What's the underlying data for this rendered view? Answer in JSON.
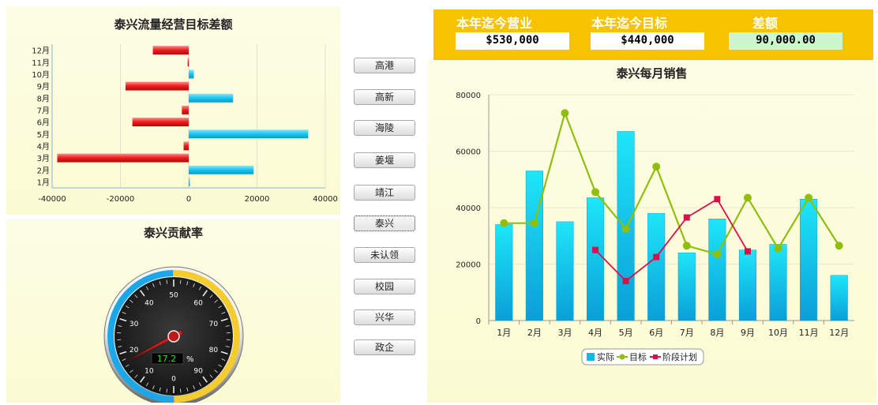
{
  "left_top_chart": {
    "title": "泰兴流量经营目标差额",
    "chart_data": {
      "type": "bar",
      "orientation": "horizontal",
      "categories": [
        "1月",
        "2月",
        "3月",
        "4月",
        "5月",
        "6月",
        "7月",
        "8月",
        "9月",
        "10月",
        "11月",
        "12月"
      ],
      "values": [
        200,
        19000,
        -38500,
        -1500,
        35000,
        -16500,
        -2000,
        13000,
        -18500,
        1500,
        -300,
        -10500
      ],
      "xlim": [
        -40000,
        40000
      ],
      "xticks": [
        -40000,
        -20000,
        0,
        20000,
        40000
      ],
      "positive_color": "#19c4ec",
      "negative_color": "#ee1a1a",
      "grid": true
    }
  },
  "gauge": {
    "title": "泰兴贡献率",
    "value": 17.2,
    "readout": "17.2",
    "unit": "%",
    "min": 0,
    "max": 100,
    "tick_labels": [
      "0",
      "10",
      "20",
      "30",
      "40",
      "50",
      "60",
      "70",
      "80",
      "90"
    ],
    "ring_colors": {
      "low": "#1ba7e8",
      "high": "#f5cc2e"
    }
  },
  "side_buttons": [
    "高港",
    "高新",
    "海陵",
    "姜堰",
    "靖江",
    "泰兴",
    "未认领",
    "校园",
    "兴华",
    "政企"
  ],
  "active_button": "泰兴",
  "kpi": {
    "items": [
      {
        "label": "本年迄今营业",
        "value": "$530,000",
        "box_color": "#ffffff"
      },
      {
        "label": "本年迄今目标",
        "value": "$440,000",
        "box_color": "#ffffff"
      },
      {
        "label": "差额",
        "value": "90,000.00",
        "box_color": "#ccf7cc"
      }
    ]
  },
  "right_chart": {
    "title": "泰兴每月销售",
    "chart_data": {
      "type": "bar+line",
      "categories": [
        "1月",
        "2月",
        "3月",
        "4月",
        "5月",
        "6月",
        "7月",
        "8月",
        "9月",
        "10月",
        "11月",
        "12月"
      ],
      "series": [
        {
          "name": "实际",
          "kind": "bar",
          "color": "#17b8e6",
          "values": [
            34000,
            53000,
            35000,
            43500,
            67000,
            38000,
            24000,
            36000,
            25000,
            27000,
            43000,
            16000
          ]
        },
        {
          "name": "目标",
          "kind": "line",
          "color": "#8fbf0a",
          "values": [
            34500,
            34500,
            73500,
            45500,
            32500,
            54500,
            26500,
            23500,
            43500,
            25500,
            43500,
            26500
          ]
        },
        {
          "name": "阶段计划",
          "kind": "line",
          "color": "#d8114a",
          "values": [
            null,
            null,
            null,
            25000,
            14000,
            22500,
            36500,
            43000,
            24500,
            null,
            null,
            null
          ]
        }
      ],
      "ylim": [
        0,
        80000
      ],
      "yticks": [
        0,
        20000,
        40000,
        60000,
        80000
      ],
      "grid": true,
      "legend_position": "bottom"
    }
  }
}
